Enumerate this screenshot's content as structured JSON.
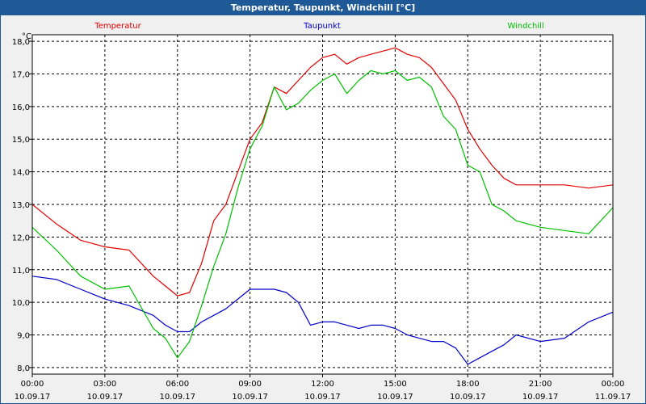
{
  "window": {
    "title": "Temperatur, Taupunkt, Windchill [°C]"
  },
  "chart_data": {
    "type": "line",
    "title": "Temperatur, Taupunkt, Windchill [°C]",
    "ylabel": "°C",
    "ylim": [
      7.8,
      18.2
    ],
    "y_ticks": [
      "8,0",
      "9,0",
      "10,0",
      "11,0",
      "12,0",
      "13,0",
      "14,0",
      "15,0",
      "16,0",
      "17,0",
      "18,0"
    ],
    "x_range": [
      0,
      24
    ],
    "x_ticks": [
      {
        "time": "00:00",
        "date": "10.09.17"
      },
      {
        "time": "03:00",
        "date": "10.09.17"
      },
      {
        "time": "06:00",
        "date": "10.09.17"
      },
      {
        "time": "09:00",
        "date": "10.09.17"
      },
      {
        "time": "12:00",
        "date": "10.09.17"
      },
      {
        "time": "15:00",
        "date": "10.09.17"
      },
      {
        "time": "18:00",
        "date": "10.09.17"
      },
      {
        "time": "21:00",
        "date": "10.09.17"
      },
      {
        "time": "00:00",
        "date": "11.09.17"
      }
    ],
    "grid": true,
    "legend": "top",
    "x": [
      0,
      1,
      2,
      3,
      4,
      5,
      5.5,
      6,
      6.5,
      7,
      7.5,
      8,
      8.5,
      9,
      9.5,
      10,
      10.5,
      11,
      11.5,
      12,
      12.5,
      13,
      13.5,
      14,
      14.5,
      15,
      15.5,
      16,
      16.5,
      17,
      17.5,
      18,
      18.5,
      19,
      19.5,
      20,
      21,
      22,
      23,
      24
    ],
    "series": [
      {
        "name": "Temperatur",
        "color": "#e00000",
        "values": [
          13.0,
          12.4,
          11.9,
          11.7,
          11.6,
          10.8,
          10.5,
          10.2,
          10.3,
          11.2,
          12.5,
          13.0,
          14.0,
          15.0,
          15.5,
          16.6,
          16.4,
          16.8,
          17.2,
          17.5,
          17.6,
          17.3,
          17.5,
          17.6,
          17.7,
          17.8,
          17.6,
          17.5,
          17.2,
          16.7,
          16.2,
          15.3,
          14.7,
          14.2,
          13.8,
          13.6,
          13.6,
          13.6,
          13.5,
          13.6
        ]
      },
      {
        "name": "Taupunkt",
        "color": "#0000c8",
        "values": [
          10.8,
          10.7,
          10.4,
          10.1,
          9.9,
          9.6,
          9.3,
          9.1,
          9.1,
          9.4,
          9.6,
          9.8,
          10.1,
          10.4,
          10.4,
          10.4,
          10.3,
          10.0,
          9.3,
          9.4,
          9.4,
          9.3,
          9.2,
          9.3,
          9.3,
          9.2,
          9.0,
          8.9,
          8.8,
          8.8,
          8.6,
          8.1,
          8.3,
          8.5,
          8.7,
          9.0,
          8.8,
          8.9,
          9.4,
          9.7
        ]
      },
      {
        "name": "Windchill",
        "color": "#00c000",
        "values": [
          12.3,
          11.6,
          10.8,
          10.4,
          10.5,
          9.2,
          8.9,
          8.3,
          8.8,
          9.9,
          11.1,
          12.1,
          13.5,
          14.7,
          15.4,
          16.6,
          15.9,
          16.1,
          16.5,
          16.8,
          17.0,
          16.4,
          16.8,
          17.1,
          17.0,
          17.1,
          16.8,
          16.9,
          16.6,
          15.7,
          15.3,
          14.2,
          14.0,
          13.0,
          12.8,
          12.5,
          12.3,
          12.2,
          12.1,
          12.9
        ]
      }
    ]
  }
}
